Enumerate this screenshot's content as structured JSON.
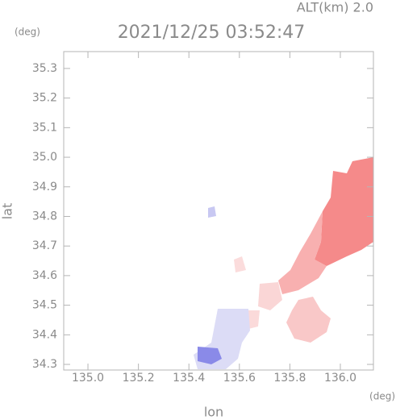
{
  "chart_data": {
    "type": "map",
    "title": "2021/12/25 03:52:47",
    "altitude_label": "ALT(km) 2.0",
    "y_unit": "(deg)",
    "x_unit": "(deg)",
    "xlabel": "lon",
    "ylabel": "lat",
    "xlim": [
      134.904,
      136.131
    ],
    "ylim": [
      34.281,
      35.357
    ],
    "xticks": [
      {
        "value": 135,
        "label": "135.0"
      },
      135.2,
      135.4,
      135.6,
      135.8,
      {
        "value": 136,
        "label": "136.0"
      }
    ],
    "yticks": [
      34.3,
      34.4,
      34.5,
      34.6,
      34.7,
      34.8,
      34.9,
      {
        "value": 35,
        "label": "35.0"
      },
      35.1,
      35.2,
      35.3
    ]
  }
}
